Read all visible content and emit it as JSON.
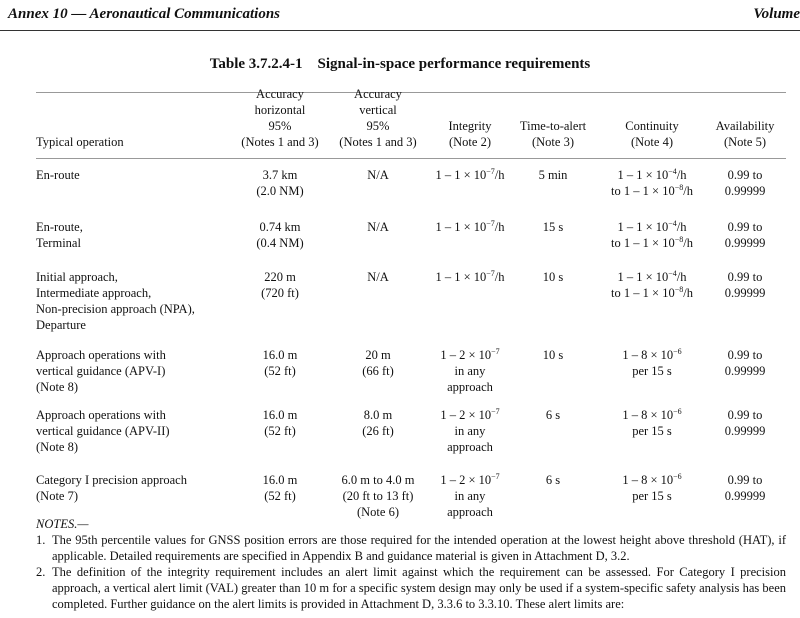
{
  "header": {
    "left": "Annex 10 — Aeronautical Communications",
    "right": "Volume"
  },
  "title": "Table 3.7.2.4-1    Signal-in-space performance requirements",
  "columns": [
    [
      "Typical operation"
    ],
    [
      "Accuracy",
      "horizontal",
      "95%",
      "(Notes 1 and 3)"
    ],
    [
      "Accuracy",
      "vertical",
      "95%",
      "(Notes 1 and 3)"
    ],
    [
      "Integrity",
      "(Note 2)"
    ],
    [
      "Time-to-alert",
      "(Note 3)"
    ],
    [
      "Continuity",
      "(Note 4)"
    ],
    [
      "Availability",
      "(Note 5)"
    ]
  ],
  "rows": [
    [
      [
        "En-route"
      ],
      [
        "3.7 km",
        "(2.0 NM)"
      ],
      [
        "N/A"
      ],
      [
        "1 – 1 × 10{−7}/h"
      ],
      [
        "5 min"
      ],
      [
        "1 – 1 × 10{−4}/h",
        "to 1 – 1 × 10{−8}/h"
      ],
      [
        "0.99 to",
        "0.99999"
      ]
    ],
    [
      [
        "En-route,",
        "Terminal"
      ],
      [
        "0.74 km",
        "(0.4 NM)"
      ],
      [
        "N/A"
      ],
      [
        "1 – 1 × 10{−7}/h"
      ],
      [
        "15 s"
      ],
      [
        "1 – 1 × 10{−4}/h",
        "to 1 – 1 × 10{−8}/h"
      ],
      [
        "0.99 to",
        "0.99999"
      ]
    ],
    [
      [
        "Initial approach,",
        "Intermediate approach,",
        "Non-precision approach (NPA),",
        "Departure"
      ],
      [
        "220 m",
        "(720 ft)"
      ],
      [
        "N/A"
      ],
      [
        "1 – 1 × 10{−7}/h"
      ],
      [
        "10 s"
      ],
      [
        "1 – 1 × 10{−4}/h",
        "to 1 – 1 × 10{−8}/h"
      ],
      [
        "0.99 to",
        "0.99999"
      ]
    ],
    [
      [
        "Approach operations with",
        "vertical guidance (APV-I)",
        "(Note 8)"
      ],
      [
        "16.0 m",
        "(52 ft)"
      ],
      [
        "20 m",
        "(66 ft)"
      ],
      [
        "1 – 2 × 10{−7}",
        "in any",
        "approach"
      ],
      [
        "10 s"
      ],
      [
        "1 – 8 × 10{−6}",
        "per 15 s"
      ],
      [
        "0.99 to",
        "0.99999"
      ]
    ],
    [
      [
        "Approach operations with",
        "vertical guidance (APV-II)",
        "(Note 8)"
      ],
      [
        "16.0 m",
        "(52 ft)"
      ],
      [
        "8.0 m",
        "(26 ft)"
      ],
      [
        "1 – 2 × 10{−7}",
        "in any",
        "approach"
      ],
      [
        "6 s"
      ],
      [
        "1 – 8 × 10{−6}",
        "per 15 s"
      ],
      [
        "0.99 to",
        "0.99999"
      ]
    ],
    [
      [
        "Category I precision approach",
        "(Note 7)"
      ],
      [
        "16.0 m",
        "(52 ft)"
      ],
      [
        "6.0 m to 4.0 m",
        "(20 ft to 13 ft)",
        "(Note 6)"
      ],
      [
        "1 – 2 × 10{−7}",
        "in any",
        "approach"
      ],
      [
        "6 s"
      ],
      [
        "1 – 8 × 10{−6}",
        "per 15 s"
      ],
      [
        "0.99 to",
        "0.99999"
      ]
    ]
  ],
  "notes": {
    "title": "NOTES.—",
    "items": [
      {
        "num": "1.",
        "text": "The 95th percentile values for GNSS position errors are those required for the intended operation at the lowest height above threshold (HAT), if applicable. Detailed requirements are specified in Appendix B and guidance material is given in Attachment D, 3.2."
      },
      {
        "num": "2.",
        "text": "The definition of the integrity requirement includes an alert limit against which the requirement can be assessed. For Category I precision approach, a vertical alert limit (VAL) greater than 10 m for a specific system design may only be used if a system-specific safety analysis has been completed. Further guidance on the alert limits is provided in Attachment D, 3.3.6 to 3.3.10. These alert limits are:"
      }
    ]
  }
}
